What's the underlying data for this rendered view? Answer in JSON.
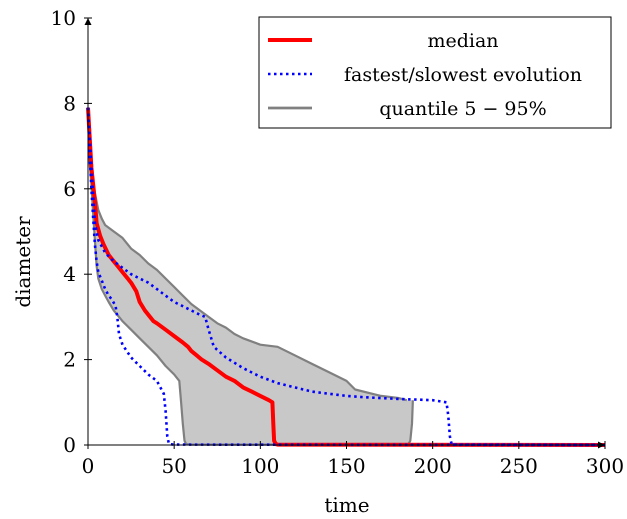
{
  "chart_data": {
    "type": "line",
    "title": "",
    "xlabel": "time",
    "ylabel": "diameter",
    "xlim": [
      0,
      300
    ],
    "ylim": [
      0,
      10
    ],
    "x_ticks": [
      0,
      50,
      100,
      150,
      200,
      250,
      300
    ],
    "y_ticks": [
      0,
      2,
      4,
      6,
      8,
      10
    ],
    "grid": false,
    "legend_position": "top-right",
    "legend": [
      {
        "label": "median",
        "style": "solid",
        "color": "#ff0000"
      },
      {
        "label": "fastest/slowest evolution",
        "style": "dotted",
        "color": "#0000ff"
      },
      {
        "label": "quantile 5 − 95%",
        "style": "solid",
        "color": "#808080"
      }
    ],
    "band": {
      "name": "quantile 5 − 95%",
      "fill": "#c8c8c8",
      "stroke": "#808080",
      "upper": [
        [
          0,
          7.9
        ],
        [
          2,
          6.5
        ],
        [
          4,
          5.9
        ],
        [
          6,
          5.5
        ],
        [
          8,
          5.3
        ],
        [
          10,
          5.15
        ],
        [
          15,
          5.0
        ],
        [
          20,
          4.85
        ],
        [
          25,
          4.6
        ],
        [
          30,
          4.45
        ],
        [
          35,
          4.25
        ],
        [
          40,
          4.1
        ],
        [
          45,
          3.9
        ],
        [
          50,
          3.7
        ],
        [
          55,
          3.5
        ],
        [
          60,
          3.3
        ],
        [
          65,
          3.15
        ],
        [
          70,
          3.0
        ],
        [
          75,
          2.85
        ],
        [
          80,
          2.75
        ],
        [
          85,
          2.6
        ],
        [
          90,
          2.5
        ],
        [
          100,
          2.35
        ],
        [
          110,
          2.3
        ],
        [
          120,
          2.1
        ],
        [
          130,
          1.9
        ],
        [
          140,
          1.7
        ],
        [
          150,
          1.5
        ],
        [
          155,
          1.3
        ],
        [
          165,
          1.2
        ],
        [
          170,
          1.15
        ],
        [
          180,
          1.1
        ],
        [
          185,
          1.05
        ]
      ],
      "lower": [
        [
          0,
          7.9
        ],
        [
          1,
          6.6
        ],
        [
          2,
          6.1
        ],
        [
          3,
          5.4
        ],
        [
          4,
          4.8
        ],
        [
          5,
          4.2
        ],
        [
          6,
          3.9
        ],
        [
          8,
          3.65
        ],
        [
          10,
          3.5
        ],
        [
          12,
          3.35
        ],
        [
          15,
          3.15
        ],
        [
          20,
          2.9
        ],
        [
          25,
          2.7
        ],
        [
          30,
          2.5
        ],
        [
          35,
          2.3
        ],
        [
          40,
          2.1
        ],
        [
          45,
          1.85
        ],
        [
          50,
          1.65
        ],
        [
          53,
          1.5
        ],
        [
          54,
          1.0
        ],
        [
          55,
          0.5
        ],
        [
          56,
          0.1
        ],
        [
          57,
          0.02
        ],
        [
          60,
          0.01
        ],
        [
          184,
          0.01
        ],
        [
          186,
          0.02
        ],
        [
          187,
          0.1
        ],
        [
          188,
          0.5
        ],
        [
          188.5,
          1.0
        ],
        [
          188.5,
          1.05
        ]
      ]
    },
    "series": [
      {
        "name": "median",
        "color": "#ff0000",
        "style": "solid",
        "points": [
          [
            0,
            7.9
          ],
          [
            2,
            6.5
          ],
          [
            4,
            5.7
          ],
          [
            5,
            5.2
          ],
          [
            7,
            4.9
          ],
          [
            9,
            4.7
          ],
          [
            12,
            4.45
          ],
          [
            15,
            4.3
          ],
          [
            18,
            4.15
          ],
          [
            20,
            4.05
          ],
          [
            25,
            3.8
          ],
          [
            28,
            3.6
          ],
          [
            30,
            3.35
          ],
          [
            33,
            3.15
          ],
          [
            35,
            3.05
          ],
          [
            38,
            2.9
          ],
          [
            40,
            2.85
          ],
          [
            45,
            2.7
          ],
          [
            50,
            2.55
          ],
          [
            55,
            2.4
          ],
          [
            58,
            2.3
          ],
          [
            60,
            2.2
          ],
          [
            63,
            2.1
          ],
          [
            66,
            2.0
          ],
          [
            70,
            1.9
          ],
          [
            75,
            1.75
          ],
          [
            80,
            1.6
          ],
          [
            85,
            1.5
          ],
          [
            90,
            1.35
          ],
          [
            95,
            1.25
          ],
          [
            100,
            1.15
          ],
          [
            105,
            1.05
          ],
          [
            107,
            1.0
          ],
          [
            107.5,
            0.5
          ],
          [
            108,
            0.1
          ],
          [
            109,
            0.02
          ],
          [
            110,
            0.01
          ],
          [
            300,
            0.0
          ]
        ]
      },
      {
        "name": "fastest evolution",
        "color": "#0000ff",
        "style": "dotted",
        "points": [
          [
            0,
            7.9
          ],
          [
            1,
            6.8
          ],
          [
            2,
            6.0
          ],
          [
            3,
            5.3
          ],
          [
            4,
            4.7
          ],
          [
            5,
            4.3
          ],
          [
            6,
            4.05
          ],
          [
            8,
            3.85
          ],
          [
            10,
            3.65
          ],
          [
            12,
            3.5
          ],
          [
            14,
            3.4
          ],
          [
            16,
            3.25
          ],
          [
            17,
            3.0
          ],
          [
            18,
            2.6
          ],
          [
            20,
            2.35
          ],
          [
            25,
            2.05
          ],
          [
            30,
            1.85
          ],
          [
            35,
            1.65
          ],
          [
            40,
            1.5
          ],
          [
            44,
            1.2
          ],
          [
            45,
            0.8
          ],
          [
            46,
            0.2
          ],
          [
            47,
            0.02
          ],
          [
            50,
            0.01
          ],
          [
            300,
            0.0
          ]
        ]
      },
      {
        "name": "slowest evolution",
        "color": "#0000ff",
        "style": "dotted",
        "points": [
          [
            0,
            7.9
          ],
          [
            2,
            6.5
          ],
          [
            4,
            5.2
          ],
          [
            6,
            4.8
          ],
          [
            10,
            4.5
          ],
          [
            15,
            4.3
          ],
          [
            20,
            4.15
          ],
          [
            25,
            4.0
          ],
          [
            30,
            3.9
          ],
          [
            35,
            3.8
          ],
          [
            40,
            3.65
          ],
          [
            45,
            3.5
          ],
          [
            50,
            3.35
          ],
          [
            55,
            3.25
          ],
          [
            60,
            3.15
          ],
          [
            65,
            3.05
          ],
          [
            68,
            3.0
          ],
          [
            70,
            2.7
          ],
          [
            73,
            2.3
          ],
          [
            80,
            2.05
          ],
          [
            90,
            1.8
          ],
          [
            100,
            1.6
          ],
          [
            110,
            1.45
          ],
          [
            120,
            1.35
          ],
          [
            130,
            1.25
          ],
          [
            140,
            1.2
          ],
          [
            150,
            1.15
          ],
          [
            160,
            1.12
          ],
          [
            180,
            1.08
          ],
          [
            200,
            1.05
          ],
          [
            208,
            1.0
          ],
          [
            209,
            0.7
          ],
          [
            210,
            0.2
          ],
          [
            211,
            0.02
          ],
          [
            212,
            0.01
          ],
          [
            300,
            0.0
          ]
        ]
      }
    ]
  }
}
